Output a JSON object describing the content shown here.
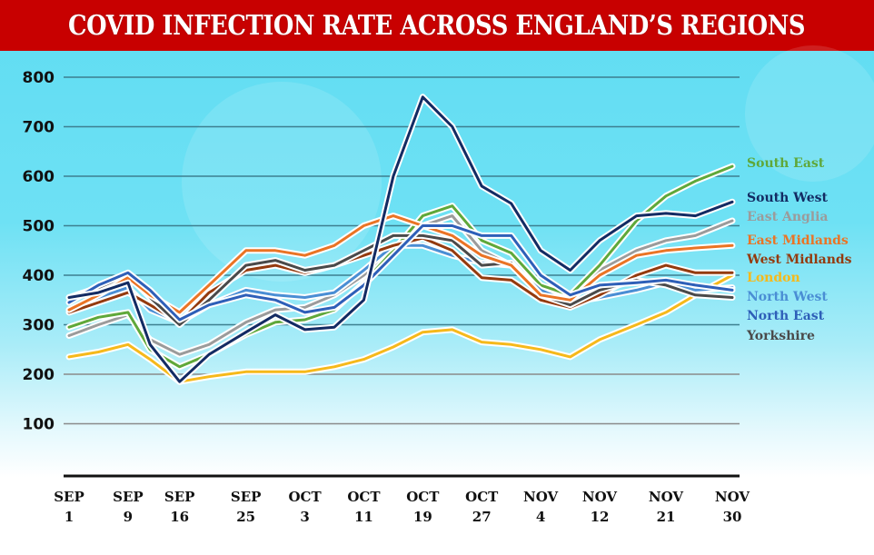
{
  "banner": {
    "title": "COVID INFECTION RATE ACROSS ENGLAND’S REGIONS",
    "color": "#c80000"
  },
  "chart_data": {
    "type": "line",
    "title": "COVID INFECTION RATE ACROSS ENGLAND’S REGIONS",
    "xlabel": "",
    "ylabel": "",
    "ylim": [
      0,
      800
    ],
    "yticks": [
      100,
      200,
      300,
      400,
      500,
      600,
      700,
      800
    ],
    "grid": true,
    "legend_position": "right",
    "xtick_labels": [
      {
        "day": 0,
        "line1": "SEP",
        "line2": "1"
      },
      {
        "day": 8,
        "line1": "SEP",
        "line2": "9"
      },
      {
        "day": 15,
        "line1": "SEP",
        "line2": "16"
      },
      {
        "day": 24,
        "line1": "SEP",
        "line2": "25"
      },
      {
        "day": 32,
        "line1": "OCT",
        "line2": "3"
      },
      {
        "day": 40,
        "line1": "OCT",
        "line2": "11"
      },
      {
        "day": 48,
        "line1": "OCT",
        "line2": "19"
      },
      {
        "day": 56,
        "line1": "OCT",
        "line2": "27"
      },
      {
        "day": 64,
        "line1": "NOV",
        "line2": "4"
      },
      {
        "day": 72,
        "line1": "NOV",
        "line2": "12"
      },
      {
        "day": 81,
        "line1": "NOV",
        "line2": "21"
      },
      {
        "day": 90,
        "line1": "NOV",
        "line2": "30"
      }
    ],
    "x_days": [
      0,
      4,
      8,
      11,
      15,
      19,
      24,
      28,
      32,
      36,
      40,
      44,
      48,
      52,
      56,
      60,
      64,
      68,
      72,
      77,
      81,
      85,
      90
    ],
    "x_range": [
      0,
      90
    ],
    "series": [
      {
        "name": "South East",
        "color": "#5fa83a",
        "values": [
          295,
          315,
          325,
          250,
          215,
          240,
          280,
          305,
          310,
          330,
          385,
          450,
          520,
          540,
          470,
          445,
          380,
          360,
          420,
          510,
          560,
          590,
          620
        ]
      },
      {
        "name": "South West",
        "color": "#132b63",
        "values": [
          355,
          365,
          385,
          260,
          185,
          240,
          285,
          320,
          290,
          295,
          350,
          600,
          760,
          700,
          580,
          545,
          450,
          410,
          470,
          520,
          525,
          520,
          548
        ]
      },
      {
        "name": "East Anglia",
        "color": "#9b9b9b",
        "values": [
          278,
          300,
          320,
          270,
          240,
          260,
          305,
          330,
          335,
          360,
          400,
          450,
          500,
          520,
          450,
          420,
          370,
          360,
          410,
          450,
          470,
          480,
          510
        ]
      },
      {
        "name": "East Midlands",
        "color": "#ea7425",
        "values": [
          330,
          360,
          395,
          360,
          325,
          380,
          450,
          450,
          440,
          460,
          500,
          520,
          500,
          480,
          440,
          420,
          360,
          350,
          400,
          440,
          450,
          455,
          460
        ]
      },
      {
        "name": "West Midlands",
        "color": "#943a0e",
        "values": [
          325,
          345,
          365,
          340,
          305,
          365,
          410,
          420,
          405,
          420,
          440,
          460,
          475,
          450,
          395,
          390,
          350,
          335,
          360,
          400,
          420,
          405,
          405
        ]
      },
      {
        "name": "London",
        "color": "#f6b91b",
        "values": [
          235,
          245,
          260,
          230,
          185,
          195,
          205,
          205,
          205,
          215,
          230,
          255,
          285,
          290,
          265,
          260,
          250,
          235,
          270,
          300,
          325,
          360,
          400
        ]
      },
      {
        "name": "North West",
        "color": "#4a8ed4",
        "values": [
          330,
          355,
          375,
          330,
          305,
          340,
          370,
          360,
          355,
          365,
          410,
          460,
          460,
          440,
          425,
          420,
          370,
          345,
          355,
          370,
          385,
          370,
          375
        ]
      },
      {
        "name": "North East",
        "color": "#2e5fb8",
        "values": [
          345,
          380,
          405,
          370,
          310,
          340,
          360,
          350,
          325,
          335,
          380,
          440,
          500,
          500,
          480,
          480,
          400,
          360,
          380,
          385,
          390,
          380,
          370
        ]
      },
      {
        "name": "Yorkshire",
        "color": "#4a4a4a",
        "values": [
          355,
          375,
          400,
          355,
          300,
          350,
          420,
          430,
          410,
          420,
          450,
          480,
          480,
          470,
          420,
          425,
          360,
          340,
          370,
          390,
          380,
          360,
          355
        ]
      }
    ],
    "legend_order": [
      "South East",
      "South West",
      "East Anglia",
      "East Midlands",
      "West Midlands",
      "London",
      "North West",
      "North East",
      "Yorkshire"
    ],
    "legend_anchor_values": [
      620,
      548,
      505,
      460,
      420,
      380,
      340,
      305,
      270
    ]
  }
}
